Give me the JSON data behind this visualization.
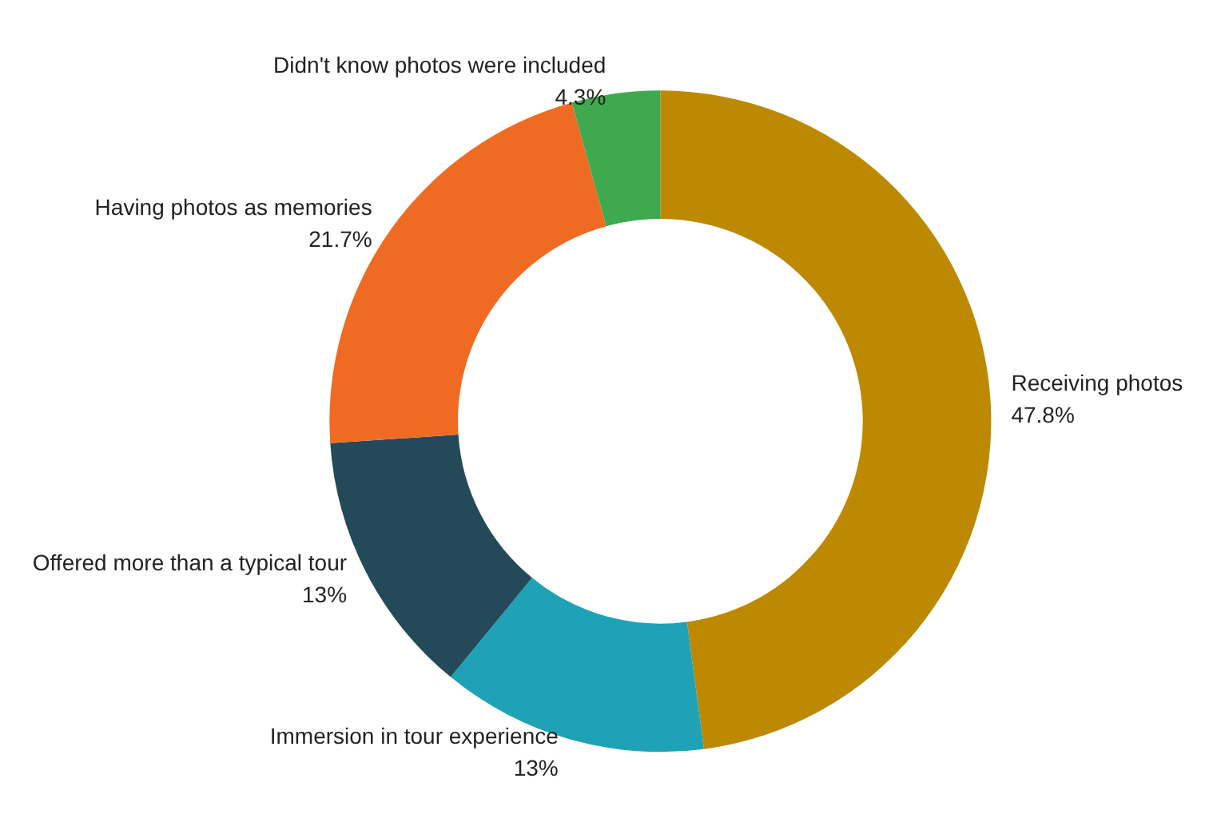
{
  "chart_data": {
    "type": "donut",
    "categories": [
      "Receiving photos",
      "Immersion in tour experience",
      "Offered more than a typical tour",
      "Having photos as memories",
      "Didn't know photos were included"
    ],
    "values": [
      47.8,
      13,
      13,
      21.7,
      4.3
    ],
    "value_labels": [
      "47.8%",
      "13%",
      "13%",
      "21.7%",
      "4.3%"
    ],
    "colors": [
      "#bd8900",
      "#1fa2b6",
      "#244a5a",
      "#ef6b24",
      "#3ea94f"
    ],
    "legend": false
  }
}
